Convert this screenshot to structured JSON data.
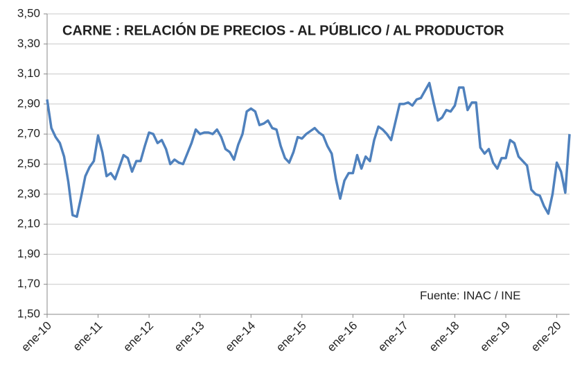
{
  "chart_data": {
    "type": "line",
    "title": "CARNE : RELACIÓN DE PRECIOS - AL PÚBLICO / AL PRODUCTOR",
    "annotation": "Fuente: INAC / INE",
    "categories": [
      "ene-10",
      null,
      null,
      null,
      null,
      null,
      null,
      null,
      null,
      null,
      null,
      null,
      "ene-11",
      null,
      null,
      null,
      null,
      null,
      null,
      null,
      null,
      null,
      null,
      null,
      "ene-12",
      null,
      null,
      null,
      null,
      null,
      null,
      null,
      null,
      null,
      null,
      null,
      "ene-13",
      null,
      null,
      null,
      null,
      null,
      null,
      null,
      null,
      null,
      null,
      null,
      "ene-14",
      null,
      null,
      null,
      null,
      null,
      null,
      null,
      null,
      null,
      null,
      null,
      "ene-15",
      null,
      null,
      null,
      null,
      null,
      null,
      null,
      null,
      null,
      null,
      null,
      "ene-16",
      null,
      null,
      null,
      null,
      null,
      null,
      null,
      null,
      null,
      null,
      null,
      "ene-17",
      null,
      null,
      null,
      null,
      null,
      null,
      null,
      null,
      null,
      null,
      null,
      "ene-18",
      null,
      null,
      null,
      null,
      null,
      null,
      null,
      null,
      null,
      null,
      null,
      "ene-19",
      null,
      null,
      null,
      null,
      null,
      null,
      null,
      null,
      null,
      null,
      null,
      "ene-20",
      null,
      null,
      null
    ],
    "series": [
      {
        "color": "#4f81bd",
        "values": [
          2.93,
          2.74,
          2.68,
          2.64,
          2.55,
          2.38,
          2.16,
          2.15,
          2.28,
          2.42,
          2.48,
          2.52,
          2.69,
          2.58,
          2.42,
          2.44,
          2.4,
          2.48,
          2.56,
          2.54,
          2.45,
          2.52,
          2.52,
          2.62,
          2.71,
          2.7,
          2.64,
          2.66,
          2.6,
          2.5,
          2.53,
          2.51,
          2.5,
          2.57,
          2.64,
          2.73,
          2.7,
          2.71,
          2.71,
          2.7,
          2.73,
          2.68,
          2.6,
          2.58,
          2.53,
          2.63,
          2.7,
          2.85,
          2.87,
          2.85,
          2.76,
          2.77,
          2.79,
          2.74,
          2.73,
          2.62,
          2.54,
          2.51,
          2.58,
          2.68,
          2.67,
          2.7,
          2.72,
          2.74,
          2.71,
          2.69,
          2.62,
          2.57,
          2.4,
          2.27,
          2.39,
          2.44,
          2.44,
          2.56,
          2.47,
          2.55,
          2.52,
          2.66,
          2.75,
          2.73,
          2.7,
          2.66,
          2.78,
          2.9,
          2.9,
          2.91,
          2.89,
          2.93,
          2.94,
          2.99,
          3.04,
          2.91,
          2.79,
          2.81,
          2.86,
          2.85,
          2.89,
          3.01,
          3.01,
          2.86,
          2.91,
          2.91,
          2.61,
          2.57,
          2.6,
          2.51,
          2.47,
          2.54,
          2.54,
          2.66,
          2.64,
          2.55,
          2.52,
          2.49,
          2.33,
          2.3,
          2.29,
          2.22,
          2.17,
          2.3,
          2.51,
          2.45,
          2.31,
          2.7
        ]
      }
    ],
    "ylim": [
      1.5,
      3.5
    ],
    "yticks": [
      {
        "value": 1.5,
        "label": "1,50"
      },
      {
        "value": 1.7,
        "label": "1,70"
      },
      {
        "value": 1.9,
        "label": "1,90"
      },
      {
        "value": 2.1,
        "label": "2,10"
      },
      {
        "value": 2.3,
        "label": "2,30"
      },
      {
        "value": 2.5,
        "label": "2,50"
      },
      {
        "value": 2.7,
        "label": "2,70"
      },
      {
        "value": 2.9,
        "label": "2,90"
      },
      {
        "value": 3.1,
        "label": "3,10"
      },
      {
        "value": 3.3,
        "label": "3,30"
      },
      {
        "value": 3.5,
        "label": "3,50"
      }
    ],
    "grid": true
  }
}
